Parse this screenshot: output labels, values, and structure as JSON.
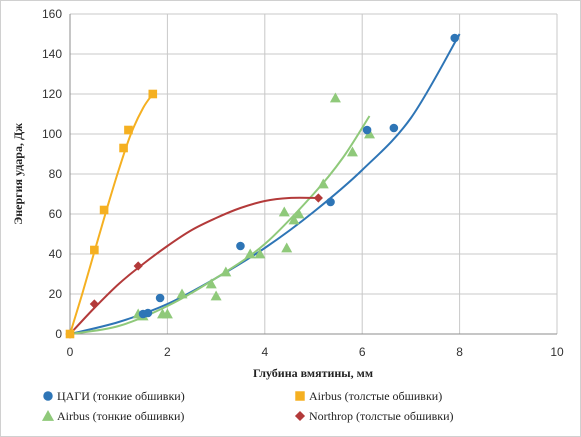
{
  "chart_data": {
    "type": "scatter",
    "title": "",
    "xlabel": "Глубина вмятины, мм",
    "ylabel": "Энергия удара, Дж",
    "xlim": [
      0,
      10
    ],
    "ylim": [
      0,
      160
    ],
    "xticks": [
      0,
      2,
      4,
      6,
      8,
      10
    ],
    "yticks": [
      0,
      20,
      40,
      60,
      80,
      100,
      120,
      140,
      160
    ],
    "grid": true,
    "legend_position": "bottom",
    "series": [
      {
        "name": "ЦАГИ (тонкие обшивки)",
        "marker": "circle",
        "color": "#2e75b6",
        "points": [
          [
            1.5,
            10
          ],
          [
            1.6,
            10.5
          ],
          [
            1.85,
            18
          ],
          [
            3.5,
            44
          ],
          [
            5.35,
            66
          ],
          [
            6.1,
            102
          ],
          [
            6.65,
            103
          ],
          [
            7.9,
            148
          ]
        ],
        "trend": [
          [
            0,
            0
          ],
          [
            1,
            6
          ],
          [
            2,
            15
          ],
          [
            3,
            28
          ],
          [
            4,
            43
          ],
          [
            5,
            61
          ],
          [
            6,
            82
          ],
          [
            7,
            108
          ],
          [
            8,
            150
          ]
        ]
      },
      {
        "name": "Airbus  (толстые обшивки)",
        "marker": "square",
        "color": "#f5b021",
        "points": [
          [
            0,
            0
          ],
          [
            0.5,
            42
          ],
          [
            0.7,
            62
          ],
          [
            1.1,
            93
          ],
          [
            1.2,
            102
          ],
          [
            1.7,
            120
          ]
        ],
        "trend": [
          [
            0,
            0
          ],
          [
            0.25,
            20
          ],
          [
            0.5,
            41
          ],
          [
            0.75,
            62
          ],
          [
            1,
            82
          ],
          [
            1.25,
            100
          ],
          [
            1.5,
            113
          ],
          [
            1.7,
            120
          ]
        ]
      },
      {
        "name": "Airbus  (тонкие обшивки)",
        "marker": "triangle",
        "color": "#8fc97a",
        "points": [
          [
            1.4,
            10
          ],
          [
            1.5,
            9
          ],
          [
            1.9,
            10
          ],
          [
            2,
            10
          ],
          [
            2.3,
            20
          ],
          [
            2.9,
            25
          ],
          [
            3,
            19
          ],
          [
            3.2,
            31
          ],
          [
            3.7,
            40
          ],
          [
            3.9,
            40
          ],
          [
            4.4,
            61
          ],
          [
            4.45,
            43
          ],
          [
            4.6,
            57
          ],
          [
            4.7,
            60
          ],
          [
            5.2,
            75
          ],
          [
            5.45,
            118
          ],
          [
            5.8,
            91
          ],
          [
            6.15,
            100
          ]
        ],
        "trend": [
          [
            0,
            0
          ],
          [
            1,
            4
          ],
          [
            2,
            14
          ],
          [
            3,
            28
          ],
          [
            4,
            45
          ],
          [
            5,
            70
          ],
          [
            5.6,
            88
          ],
          [
            6.15,
            109
          ]
        ]
      },
      {
        "name": "Northrop  (толстые обшивки)",
        "marker": "diamond",
        "color": "#b33a3a",
        "points": [
          [
            0,
            0
          ],
          [
            0.5,
            15
          ],
          [
            1.4,
            34
          ],
          [
            5.1,
            68
          ]
        ],
        "trend": [
          [
            0,
            0
          ],
          [
            0.5,
            13
          ],
          [
            1,
            25
          ],
          [
            1.5,
            35
          ],
          [
            2,
            44
          ],
          [
            2.5,
            52
          ],
          [
            3,
            58
          ],
          [
            3.5,
            63
          ],
          [
            4,
            66.5
          ],
          [
            4.5,
            68
          ],
          [
            5.1,
            68
          ]
        ]
      }
    ]
  }
}
